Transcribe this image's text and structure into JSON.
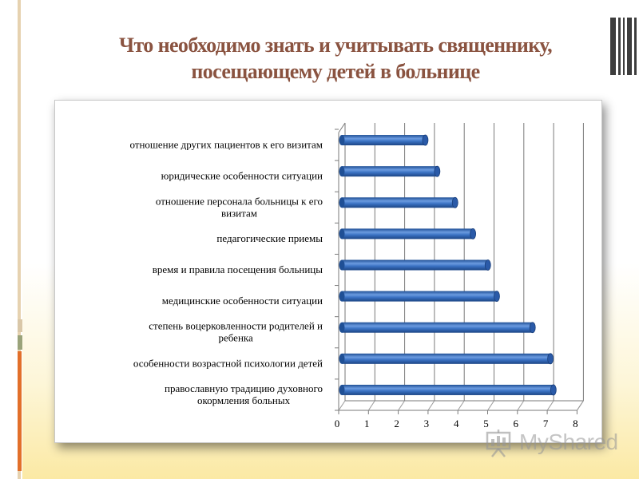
{
  "slide": {
    "title_line1": "Что необходимо знать и учитывать священнику,",
    "title_line2": "посещающему детей в больнице",
    "watermark": "MyShared",
    "colors": {
      "title": "#8a5340",
      "bar": "#3b73c4",
      "accent": "#e26f2a"
    }
  },
  "chart_data": {
    "type": "bar",
    "orientation": "horizontal",
    "style": "3d-cylinder",
    "categories": [
      [
        "отношение других пациентов к его визитам"
      ],
      [
        "юридические особенности ситуации"
      ],
      [
        "отношение персонала больницы к его",
        "визитам"
      ],
      [
        "педагогические приемы"
      ],
      [
        "время и правила посещения больницы"
      ],
      [
        "медицинские особенности ситуации"
      ],
      [
        "степень воцерковленности родителей и",
        "ребенка"
      ],
      [
        "особенности возрастной психологии детей"
      ],
      [
        "православную традицию духовного",
        "окормления больных"
      ]
    ],
    "values": [
      2.8,
      3.2,
      3.8,
      4.4,
      4.9,
      5.2,
      6.4,
      7.0,
      7.1
    ],
    "xlim": [
      0,
      8
    ],
    "xticks": [
      "0",
      "1",
      "2",
      "3",
      "4",
      "5",
      "6",
      "7",
      "8"
    ],
    "grid": true
  }
}
